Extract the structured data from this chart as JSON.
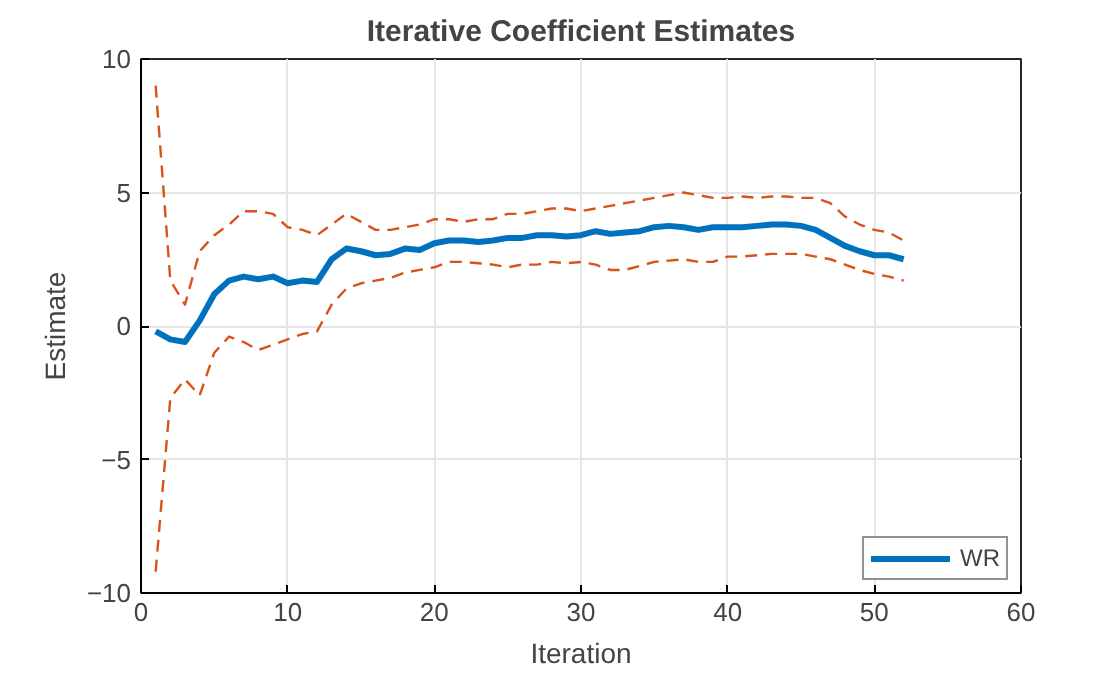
{
  "chart_data": {
    "type": "line",
    "title": "Iterative Coefficient Estimates",
    "xlabel": "Iteration",
    "ylabel": "Estimate",
    "x": [
      1,
      2,
      3,
      4,
      5,
      6,
      7,
      8,
      9,
      10,
      11,
      12,
      13,
      14,
      15,
      16,
      17,
      18,
      19,
      20,
      21,
      22,
      23,
      24,
      25,
      26,
      27,
      28,
      29,
      30,
      31,
      32,
      33,
      34,
      35,
      36,
      37,
      38,
      39,
      40,
      41,
      42,
      43,
      44,
      45,
      46,
      47,
      48,
      49,
      50,
      51,
      52
    ],
    "xlim": [
      0,
      60
    ],
    "xticks": [
      0,
      10,
      20,
      30,
      40,
      50,
      60
    ],
    "ylim": [
      -10,
      10
    ],
    "yticks": [
      -10,
      -5,
      0,
      5,
      10
    ],
    "grid": true,
    "legend": "bottom right",
    "series": [
      {
        "name": "WR",
        "color": "#0072bd",
        "line_style": "solid",
        "values": [
          -0.2,
          -0.5,
          -0.6,
          0.2,
          1.2,
          1.7,
          1.85,
          1.75,
          1.85,
          1.6,
          1.7,
          1.65,
          2.5,
          2.9,
          2.8,
          2.65,
          2.7,
          2.9,
          2.85,
          3.1,
          3.2,
          3.2,
          3.15,
          3.2,
          3.3,
          3.3,
          3.4,
          3.4,
          3.35,
          3.4,
          3.55,
          3.45,
          3.5,
          3.55,
          3.7,
          3.75,
          3.7,
          3.6,
          3.7,
          3.7,
          3.7,
          3.75,
          3.8,
          3.8,
          3.75,
          3.6,
          3.3,
          3.0,
          2.8,
          2.65,
          2.65,
          2.5
        ]
      },
      {
        "color": "#d95319",
        "line_style": "dashed",
        "values": [
          9.0,
          1.7,
          0.8,
          2.8,
          3.4,
          3.8,
          4.3,
          4.3,
          4.2,
          3.7,
          3.6,
          3.4,
          3.8,
          4.2,
          3.9,
          3.6,
          3.6,
          3.7,
          3.8,
          4.0,
          4.0,
          3.9,
          4.0,
          4.0,
          4.2,
          4.2,
          4.3,
          4.4,
          4.4,
          4.3,
          4.4,
          4.5,
          4.6,
          4.7,
          4.8,
          4.9,
          5.0,
          4.9,
          4.8,
          4.8,
          4.85,
          4.8,
          4.85,
          4.85,
          4.8,
          4.8,
          4.6,
          4.1,
          3.8,
          3.6,
          3.5,
          3.2
        ]
      },
      {
        "color": "#d95319",
        "line_style": "dashed",
        "values": [
          -9.2,
          -2.7,
          -2.0,
          -2.6,
          -1.0,
          -0.4,
          -0.6,
          -0.9,
          -0.7,
          -0.5,
          -0.3,
          -0.2,
          0.8,
          1.4,
          1.6,
          1.7,
          1.8,
          2.0,
          2.1,
          2.2,
          2.4,
          2.4,
          2.35,
          2.3,
          2.2,
          2.3,
          2.3,
          2.4,
          2.35,
          2.4,
          2.3,
          2.1,
          2.1,
          2.25,
          2.4,
          2.45,
          2.5,
          2.4,
          2.4,
          2.6,
          2.6,
          2.65,
          2.7,
          2.7,
          2.7,
          2.6,
          2.5,
          2.3,
          2.1,
          1.95,
          1.85,
          1.7
        ]
      }
    ]
  }
}
